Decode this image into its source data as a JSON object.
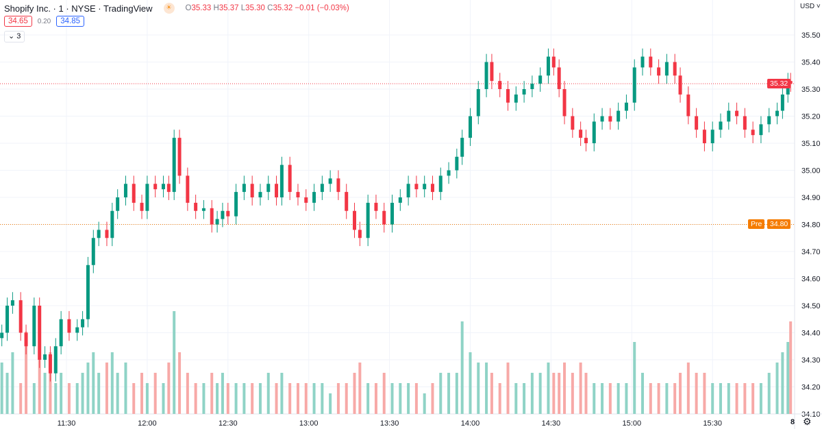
{
  "legend": {
    "symbol": "Shopify Inc. · 1 · NYSE · TradingView",
    "open_label": "O",
    "open": "35.33",
    "high_label": "H",
    "high": "35.37",
    "low_label": "L",
    "low": "35.30",
    "close_label": "C",
    "close": "35.32",
    "change": "−0.01 (−0.03%)",
    "bid": "34.65",
    "spread": "0.20",
    "ask": "34.85",
    "indicators_count": "3"
  },
  "axis": {
    "currency": "USD",
    "last_price": "35.32",
    "pre_label": "Pre",
    "pre_price": "34.80",
    "bottom_right": "8"
  },
  "colors": {
    "up": "#089981",
    "down": "#f23645",
    "up_volume": "#8fd3c6",
    "down_volume": "#f7a9a7",
    "pre": "#f57c00"
  },
  "chart_data": {
    "type": "candlestick",
    "interval": "1",
    "ylim": [
      34.1,
      35.55
    ],
    "y_ticks": [
      "35.50",
      "35.40",
      "35.30",
      "35.20",
      "35.10",
      "35.00",
      "34.90",
      "34.80",
      "34.70",
      "34.60",
      "34.50",
      "34.40",
      "34.30",
      "34.20",
      "34.10"
    ],
    "x_ticks": [
      "11:30",
      "12:00",
      "12:30",
      "13:00",
      "13:30",
      "14:00",
      "14:30",
      "15:00",
      "15:30"
    ],
    "time_range": [
      "11:06",
      "15:59"
    ],
    "grid": true,
    "series": [
      [
        "11:06",
        34.4,
        0.5
      ],
      [
        "11:08",
        34.5,
        0.4
      ],
      [
        "11:10",
        34.52,
        0.6
      ],
      [
        "11:13",
        34.4,
        0.3
      ],
      [
        "11:15",
        34.35,
        0.8
      ],
      [
        "11:18",
        34.5,
        0.3
      ],
      [
        "11:20",
        34.3,
        0.9
      ],
      [
        "11:22",
        34.32,
        0.4
      ],
      [
        "11:24",
        34.25,
        0.6
      ],
      [
        "11:26",
        34.35,
        0.3
      ],
      [
        "11:28",
        34.45,
        0.4
      ],
      [
        "11:31",
        34.4,
        0.3
      ],
      [
        "11:34",
        34.42,
        0.3
      ],
      [
        "11:36",
        34.45,
        0.4
      ],
      [
        "11:38",
        34.65,
        0.5
      ],
      [
        "11:40",
        34.75,
        0.6
      ],
      [
        "11:42",
        34.78,
        0.4
      ],
      [
        "11:45",
        34.75,
        0.5
      ],
      [
        "11:47",
        34.85,
        0.6
      ],
      [
        "11:49",
        34.9,
        0.4
      ],
      [
        "11:52",
        34.95,
        0.5
      ],
      [
        "11:55",
        34.88,
        0.3
      ],
      [
        "11:58",
        34.85,
        0.4
      ],
      [
        "12:00",
        34.95,
        0.3
      ],
      [
        "12:03",
        34.93,
        0.4
      ],
      [
        "12:06",
        34.95,
        0.3
      ],
      [
        "12:08",
        34.92,
        0.5
      ],
      [
        "12:10",
        35.12,
        1.0
      ],
      [
        "12:12",
        34.98,
        0.6
      ],
      [
        "12:15",
        34.88,
        0.4
      ],
      [
        "12:18",
        34.85,
        0.3
      ],
      [
        "12:21",
        34.86,
        0.3
      ],
      [
        "12:24",
        34.8,
        0.4
      ],
      [
        "12:26",
        34.82,
        0.3
      ],
      [
        "12:28",
        34.85,
        0.4
      ],
      [
        "12:30",
        34.83,
        0.3
      ],
      [
        "12:33",
        34.92,
        0.3
      ],
      [
        "12:36",
        34.95,
        0.3
      ],
      [
        "12:39",
        34.9,
        0.3
      ],
      [
        "12:42",
        34.92,
        0.3
      ],
      [
        "12:45",
        34.95,
        0.4
      ],
      [
        "12:48",
        34.9,
        0.3
      ],
      [
        "12:50",
        35.02,
        0.4
      ],
      [
        "12:53",
        34.92,
        0.3
      ],
      [
        "12:56",
        34.9,
        0.3
      ],
      [
        "12:59",
        34.88,
        0.3
      ],
      [
        "13:02",
        34.92,
        0.3
      ],
      [
        "13:05",
        34.95,
        0.3
      ],
      [
        "13:08",
        34.97,
        0.2
      ],
      [
        "13:11",
        34.92,
        0.3
      ],
      [
        "13:14",
        34.85,
        0.3
      ],
      [
        "13:17",
        34.78,
        0.4
      ],
      [
        "13:19",
        34.75,
        0.5
      ],
      [
        "13:22",
        34.88,
        0.3
      ],
      [
        "13:25",
        34.85,
        0.3
      ],
      [
        "13:28",
        34.8,
        0.4
      ],
      [
        "13:31",
        34.88,
        0.3
      ],
      [
        "13:34",
        34.9,
        0.3
      ],
      [
        "13:37",
        34.95,
        0.3
      ],
      [
        "13:40",
        34.93,
        0.3
      ],
      [
        "13:43",
        34.95,
        0.2
      ],
      [
        "13:46",
        34.92,
        0.3
      ],
      [
        "13:49",
        34.98,
        0.4
      ],
      [
        "13:52",
        35.0,
        0.4
      ],
      [
        "13:55",
        35.05,
        0.4
      ],
      [
        "13:57",
        35.12,
        0.9
      ],
      [
        "14:00",
        35.2,
        0.6
      ],
      [
        "14:03",
        35.3,
        0.5
      ],
      [
        "14:06",
        35.4,
        0.5
      ],
      [
        "14:08",
        35.33,
        0.4
      ],
      [
        "14:11",
        35.3,
        0.3
      ],
      [
        "14:14",
        35.25,
        0.5
      ],
      [
        "14:17",
        35.28,
        0.3
      ],
      [
        "14:20",
        35.3,
        0.3
      ],
      [
        "14:23",
        35.32,
        0.4
      ],
      [
        "14:26",
        35.35,
        0.4
      ],
      [
        "14:29",
        35.42,
        0.5
      ],
      [
        "14:31",
        35.38,
        0.4
      ],
      [
        "14:33",
        35.3,
        0.4
      ],
      [
        "14:35",
        35.2,
        0.5
      ],
      [
        "14:38",
        35.15,
        0.4
      ],
      [
        "14:41",
        35.12,
        0.5
      ],
      [
        "14:43",
        35.1,
        0.4
      ],
      [
        "14:46",
        35.18,
        0.3
      ],
      [
        "14:49",
        35.2,
        0.3
      ],
      [
        "14:52",
        35.18,
        0.3
      ],
      [
        "14:55",
        35.22,
        0.3
      ],
      [
        "14:58",
        35.25,
        0.3
      ],
      [
        "15:01",
        35.38,
        0.7
      ],
      [
        "15:04",
        35.42,
        0.4
      ],
      [
        "15:07",
        35.38,
        0.3
      ],
      [
        "15:10",
        35.35,
        0.3
      ],
      [
        "15:13",
        35.4,
        0.3
      ],
      [
        "15:16",
        35.35,
        0.3
      ],
      [
        "15:18",
        35.28,
        0.4
      ],
      [
        "15:21",
        35.2,
        0.5
      ],
      [
        "15:24",
        35.15,
        0.4
      ],
      [
        "15:27",
        35.1,
        0.4
      ],
      [
        "15:30",
        35.15,
        0.3
      ],
      [
        "15:33",
        35.18,
        0.3
      ],
      [
        "15:36",
        35.22,
        0.3
      ],
      [
        "15:39",
        35.2,
        0.3
      ],
      [
        "15:42",
        35.15,
        0.3
      ],
      [
        "15:45",
        35.13,
        0.3
      ],
      [
        "15:48",
        35.17,
        0.3
      ],
      [
        "15:51",
        35.2,
        0.4
      ],
      [
        "15:54",
        35.22,
        0.5
      ],
      [
        "15:56",
        35.28,
        0.6
      ],
      [
        "15:58",
        35.33,
        0.7
      ],
      [
        "15:59",
        35.32,
        0.9
      ]
    ]
  }
}
